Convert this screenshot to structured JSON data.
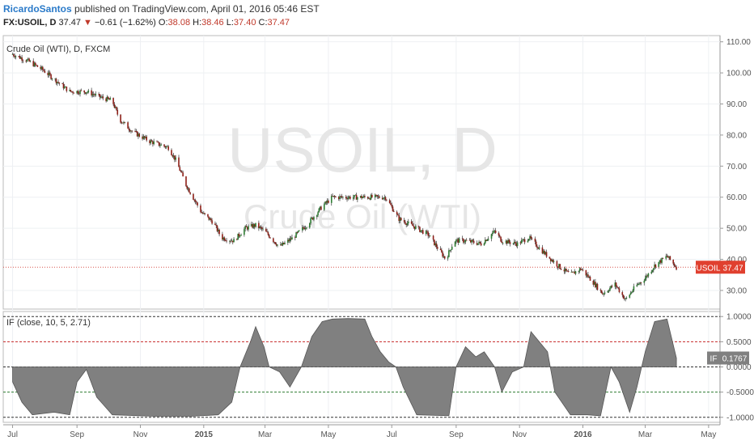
{
  "header": {
    "author": "RicardoSantos",
    "published": "published on TradingView.com, April 01, 2016 05:46 EST",
    "symbol": "FX:USOIL, D",
    "last": "37.47",
    "change": "−0.61 (−1.62%)",
    "o_label": "O:",
    "o_val": "38.08",
    "h_label": "H:",
    "h_val": "38.46",
    "l_label": "L:",
    "l_val": "37.40",
    "c_label": "C:",
    "c_val": "37.47"
  },
  "chart_data": [
    {
      "type": "candlestick",
      "title": "Crude Oil (WTI), D, FXCM",
      "watermark_symbol": "USOIL, D",
      "watermark_name": "Crude Oil (WTI)",
      "price_badge_label": "USOIL",
      "price_badge_value": "37.47",
      "last_price": 37.47,
      "ylim": [
        24,
        112
      ],
      "yticks": [
        30,
        40,
        50,
        60,
        70,
        80,
        90,
        100,
        110
      ],
      "ytick_labels": [
        "30.00",
        "40.00",
        "50.00",
        "60.00",
        "70.00",
        "80.00",
        "90.00",
        "100.00",
        "110.00"
      ],
      "xtick_labels": [
        "Jul",
        "Sep",
        "Nov",
        "2015",
        "Mar",
        "May",
        "Jul",
        "Sep",
        "Nov",
        "2016",
        "Mar",
        "May"
      ],
      "close_path": [
        [
          "2014-07-01",
          106
        ],
        [
          "2014-07-15",
          104
        ],
        [
          "2014-07-30",
          101
        ],
        [
          "2014-08-10",
          98
        ],
        [
          "2014-08-25",
          94
        ],
        [
          "2014-09-10",
          94
        ],
        [
          "2014-09-25",
          92
        ],
        [
          "2014-10-05",
          91
        ],
        [
          "2014-10-12",
          85
        ],
        [
          "2014-10-25",
          81
        ],
        [
          "2014-11-10",
          78
        ],
        [
          "2014-11-28",
          76
        ],
        [
          "2014-12-05",
          72
        ],
        [
          "2014-12-15",
          64
        ],
        [
          "2014-12-30",
          55
        ],
        [
          "2015-01-10",
          52
        ],
        [
          "2015-01-18",
          47
        ],
        [
          "2015-01-30",
          46
        ],
        [
          "2015-02-10",
          50
        ],
        [
          "2015-02-20",
          51
        ],
        [
          "2015-03-01",
          49
        ],
        [
          "2015-03-15",
          44
        ],
        [
          "2015-03-28",
          47
        ],
        [
          "2015-04-10",
          51
        ],
        [
          "2015-04-25",
          57
        ],
        [
          "2015-05-05",
          60
        ],
        [
          "2015-05-20",
          60
        ],
        [
          "2015-06-10",
          60
        ],
        [
          "2015-06-25",
          60
        ],
        [
          "2015-07-08",
          53
        ],
        [
          "2015-07-20",
          51
        ],
        [
          "2015-08-05",
          48
        ],
        [
          "2015-08-22",
          40
        ],
        [
          "2015-08-30",
          46
        ],
        [
          "2015-09-10",
          46
        ],
        [
          "2015-09-25",
          45
        ],
        [
          "2015-10-08",
          49
        ],
        [
          "2015-10-15",
          46
        ],
        [
          "2015-10-30",
          45
        ],
        [
          "2015-11-10",
          47
        ],
        [
          "2015-11-25",
          42
        ],
        [
          "2015-12-08",
          38
        ],
        [
          "2015-12-20",
          35
        ],
        [
          "2015-12-30",
          37
        ],
        [
          "2016-01-10",
          33
        ],
        [
          "2016-01-20",
          29
        ],
        [
          "2016-02-01",
          32
        ],
        [
          "2016-02-11",
          27
        ],
        [
          "2016-02-20",
          31
        ],
        [
          "2016-03-01",
          34
        ],
        [
          "2016-03-10",
          38
        ],
        [
          "2016-03-22",
          41
        ],
        [
          "2016-03-31",
          37.47
        ]
      ]
    },
    {
      "type": "area",
      "title": "IF (close, 10, 5, 2.71)",
      "last_label": "IF",
      "last_value": "0.1767",
      "ylim": [
        -1.1,
        1.1
      ],
      "yticks": [
        -1,
        -0.5,
        0,
        0.5,
        1
      ],
      "ytick_labels": [
        "-1.0000",
        "-0.5000",
        "0.0000",
        "0.5000",
        "1.0000"
      ],
      "levels": [
        1,
        0.5,
        0,
        -0.5,
        -1
      ],
      "values_path": [
        [
          "2014-07-01",
          -0.3
        ],
        [
          "2014-07-10",
          -0.7
        ],
        [
          "2014-07-20",
          -0.95
        ],
        [
          "2014-08-10",
          -0.9
        ],
        [
          "2014-08-25",
          -0.95
        ],
        [
          "2014-09-01",
          -0.3
        ],
        [
          "2014-09-10",
          -0.05
        ],
        [
          "2014-09-20",
          -0.6
        ],
        [
          "2014-10-05",
          -0.95
        ],
        [
          "2014-11-15",
          -0.98
        ],
        [
          "2014-12-20",
          -0.98
        ],
        [
          "2015-01-15",
          -0.95
        ],
        [
          "2015-01-28",
          -0.7
        ],
        [
          "2015-02-05",
          0.0
        ],
        [
          "2015-02-15",
          0.5
        ],
        [
          "2015-02-20",
          0.8
        ],
        [
          "2015-02-28",
          0.4
        ],
        [
          "2015-03-05",
          0.0
        ],
        [
          "2015-03-15",
          -0.1
        ],
        [
          "2015-03-25",
          -0.4
        ],
        [
          "2015-04-05",
          0.0
        ],
        [
          "2015-04-15",
          0.6
        ],
        [
          "2015-04-25",
          0.9
        ],
        [
          "2015-05-05",
          0.95
        ],
        [
          "2015-05-20",
          0.96
        ],
        [
          "2015-06-05",
          0.95
        ],
        [
          "2015-06-12",
          0.6
        ],
        [
          "2015-06-20",
          0.3
        ],
        [
          "2015-06-28",
          0.1
        ],
        [
          "2015-07-05",
          0.0
        ],
        [
          "2015-07-12",
          -0.4
        ],
        [
          "2015-07-25",
          -0.95
        ],
        [
          "2015-08-25",
          -0.97
        ],
        [
          "2015-09-01",
          0.0
        ],
        [
          "2015-09-10",
          0.4
        ],
        [
          "2015-09-20",
          0.2
        ],
        [
          "2015-09-28",
          0.3
        ],
        [
          "2015-10-08",
          0.0
        ],
        [
          "2015-10-15",
          -0.5
        ],
        [
          "2015-10-25",
          -0.1
        ],
        [
          "2015-11-05",
          0.0
        ],
        [
          "2015-11-12",
          0.7
        ],
        [
          "2015-11-20",
          0.5
        ],
        [
          "2015-11-28",
          0.3
        ],
        [
          "2015-12-05",
          -0.5
        ],
        [
          "2015-12-20",
          -0.95
        ],
        [
          "2016-01-05",
          -0.95
        ],
        [
          "2016-01-18",
          -0.97
        ],
        [
          "2016-01-28",
          0.0
        ],
        [
          "2016-02-05",
          -0.3
        ],
        [
          "2016-02-15",
          -0.9
        ],
        [
          "2016-02-22",
          -0.4
        ],
        [
          "2016-03-01",
          0.3
        ],
        [
          "2016-03-10",
          0.9
        ],
        [
          "2016-03-22",
          0.95
        ],
        [
          "2016-03-31",
          0.1767
        ]
      ]
    }
  ]
}
